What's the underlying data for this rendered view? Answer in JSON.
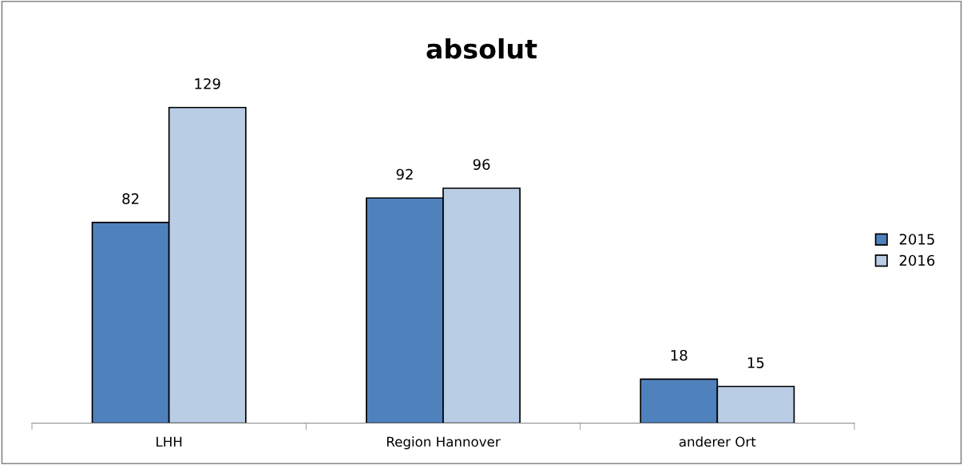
{
  "chart_data": {
    "type": "bar",
    "title": "absolut",
    "categories": [
      "LHH",
      "Region Hannover",
      "anderer Ort"
    ],
    "series": [
      {
        "name": "2015",
        "color": "#4f81bd",
        "values": [
          82,
          92,
          18
        ]
      },
      {
        "name": "2016",
        "color": "#b9cde5",
        "values": [
          129,
          96,
          15
        ]
      }
    ],
    "data_labels": true,
    "legend": "right"
  }
}
